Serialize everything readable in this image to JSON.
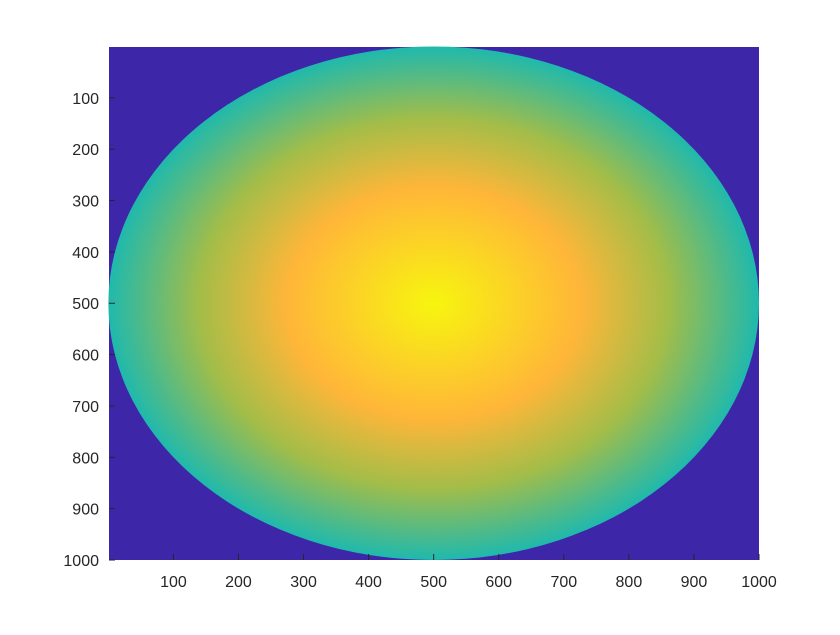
{
  "chart_data": {
    "type": "heatmap",
    "title": "",
    "xlabel": "",
    "ylabel": "",
    "x_ticks": [
      "100",
      "200",
      "300",
      "400",
      "500",
      "600",
      "700",
      "800",
      "900",
      "1000"
    ],
    "y_ticks": [
      "100",
      "200",
      "300",
      "400",
      "500",
      "600",
      "700",
      "800",
      "900",
      "1000"
    ],
    "xlim": [
      1,
      1000
    ],
    "ylim": [
      1,
      1000
    ],
    "y_direction": "reversed",
    "grid": false,
    "legend": "none",
    "colormap": "parula",
    "background_color": "#3e26a8",
    "image": {
      "shape": "ellipse",
      "center": [
        500,
        500
      ],
      "semi_axes": [
        500,
        500
      ],
      "center_value": 1.0,
      "edge_value": 0.5,
      "outside_value": 0.0
    },
    "colors": {
      "outside": "#3e26a8",
      "edge": "#1fb9ad",
      "mid": "#ffb639",
      "center": "#f7f50f"
    }
  }
}
